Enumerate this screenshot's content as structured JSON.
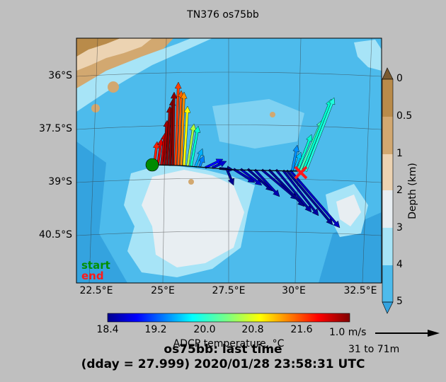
{
  "title": "TN376 os75bb",
  "lat_labels": [
    "36°S",
    "37.5°S",
    "39°S",
    "40.5°S"
  ],
  "lon_labels": [
    "22.5°E",
    "25°E",
    "27.5°E",
    "30°E",
    "32.5°E"
  ],
  "depth_colorbar": {
    "label": "Depth (km)",
    "ticks": [
      "0",
      "0.5",
      "1",
      "2",
      "3",
      "4",
      "5"
    ],
    "colors": [
      "#7a5a30",
      "#b98b4a",
      "#d2a870",
      "#ecd3b2",
      "#e8eef2",
      "#a7e4f7",
      "#4dbbec",
      "#34a3df"
    ]
  },
  "temp_colorbar": {
    "label": "ADCP temperature, °C",
    "ticks": [
      "18.4",
      "19.2",
      "20.0",
      "20.8",
      "21.6"
    ]
  },
  "legend": {
    "start": "start",
    "end": "end"
  },
  "scale": {
    "speed": "1.0 m/s",
    "depth_range": "31 to 71m"
  },
  "caption": {
    "line1": "os75bb: last time",
    "line2": "(dday = 27.999) 2020/01/28 23:58:31 UTC"
  },
  "track": {
    "start_color": "#008a00",
    "end_color": "#ff1a1a"
  }
}
